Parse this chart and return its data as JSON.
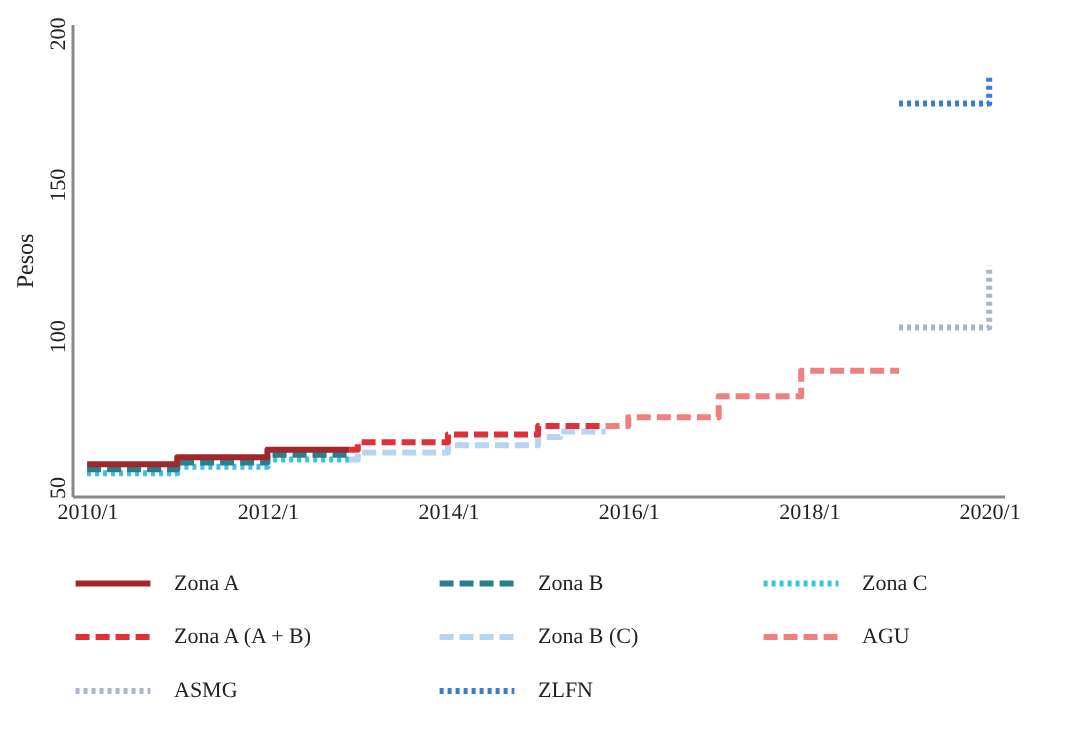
{
  "chart_data": {
    "type": "step",
    "ylabel": "Pesos",
    "xlim": [
      "2009-11-01",
      "2020-03-01"
    ],
    "xticks": [
      {
        "value": "2010-01-01",
        "label": "2010/1"
      },
      {
        "value": "2012-01-01",
        "label": "2012/1"
      },
      {
        "value": "2014-01-01",
        "label": "2014/1"
      },
      {
        "value": "2016-01-01",
        "label": "2016/1"
      },
      {
        "value": "2018-01-01",
        "label": "2018/1"
      },
      {
        "value": "2020-01-01",
        "label": "2020/1"
      }
    ],
    "ylim": [
      47,
      203
    ],
    "yticks": [
      50,
      100,
      150,
      200
    ],
    "grid": false,
    "legend": "bottom",
    "series": [
      {
        "name": "Zona A",
        "color": "#a1272b",
        "line_style": "solid",
        "x": [
          "2010-01-01",
          "2011-01-01",
          "2012-01-01",
          "2012-11-27"
        ],
        "values": [
          57.5,
          59.8,
          62.3,
          62.3
        ]
      },
      {
        "name": "Zona B",
        "color": "#2a7f8f",
        "line_style": "dashed",
        "x": [
          "2010-01-01",
          "2011-01-01",
          "2012-01-01",
          "2012-11-27"
        ],
        "values": [
          55.8,
          58.1,
          60.6,
          60.6
        ]
      },
      {
        "name": "Zona C",
        "color": "#3fc0e0",
        "line_style": "dotted",
        "x": [
          "2010-01-01",
          "2011-01-01",
          "2012-01-01",
          "2012-11-27"
        ],
        "values": [
          54.5,
          56.7,
          59.1,
          59.1
        ]
      },
      {
        "name": "Zona A (A + B)",
        "color": "#e03038",
        "line_style": "dashed",
        "x": [
          "2012-11-27",
          "2013-01-01",
          "2014-01-01",
          "2015-01-01",
          "2015-10-01"
        ],
        "values": [
          62.3,
          64.8,
          67.3,
          70.1,
          70.1
        ]
      },
      {
        "name": "Zona B (C)",
        "color": "#b5d5f0",
        "line_style": "dashed",
        "x": [
          "2012-11-27",
          "2013-01-01",
          "2014-01-01",
          "2015-01-01",
          "2015-04-01",
          "2015-10-01"
        ],
        "values": [
          59.1,
          61.4,
          63.8,
          66.5,
          68.3,
          68.3
        ]
      },
      {
        "name": "AGU",
        "color": "#f08080",
        "line_style": "dashed",
        "x": [
          "2015-10-01",
          "2016-01-01",
          "2017-01-01",
          "2017-12-01",
          "2019-01-01"
        ],
        "values": [
          70.1,
          73,
          80,
          88.4,
          88.4
        ]
      },
      {
        "name": "ASMG",
        "color": "#a9b6c8",
        "line_style": "dotted",
        "x": [
          "2019-01-01",
          "2020-01-01"
        ],
        "values": [
          102.7,
          123.2
        ]
      },
      {
        "name": "ZLFN",
        "color": "#3a7bd5",
        "line_style": "dotted",
        "x": [
          "2019-01-01",
          "2020-01-01"
        ],
        "values": [
          176.7,
          185.6
        ]
      }
    ]
  }
}
